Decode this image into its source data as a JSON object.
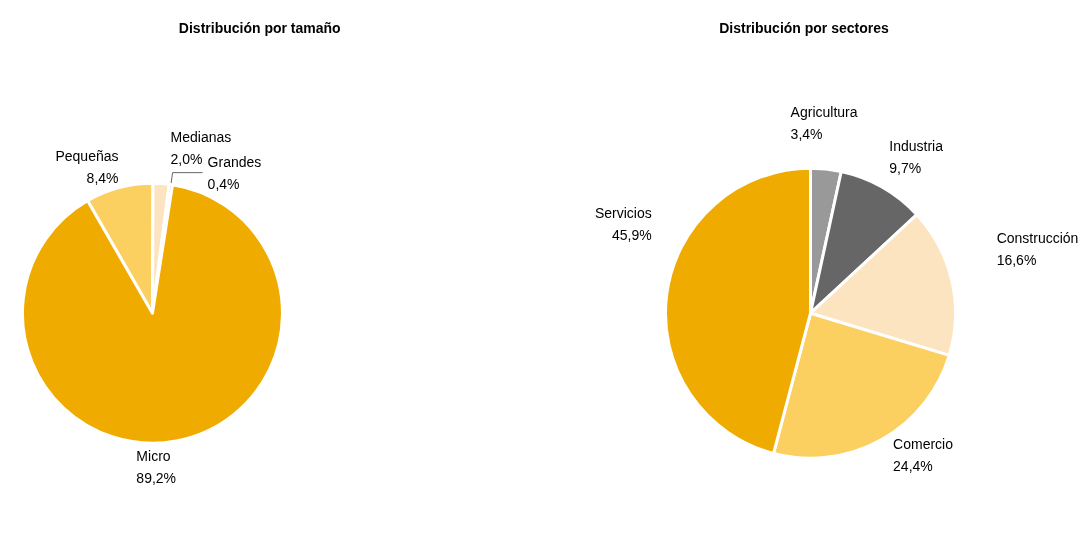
{
  "chart_data": [
    {
      "type": "pie",
      "title": "Distribución por tamaño",
      "categories": [
        "Pequeñas",
        "Medianas",
        "Grandes",
        "Micro"
      ],
      "values": [
        8.4,
        2.0,
        0.4,
        89.2
      ],
      "value_labels": [
        "8,4%",
        "2,0%",
        "0,4%",
        "89,2%"
      ],
      "colors": [
        "#fcd060",
        "#fde4c0",
        "#666666",
        "#f0ab00"
      ],
      "legend": false
    },
    {
      "type": "pie",
      "title": "Distribución por sectores",
      "categories": [
        "Agricultura",
        "Industria",
        "Construcción",
        "Comercio",
        "Servicios"
      ],
      "values": [
        3.4,
        9.7,
        16.6,
        24.4,
        45.9
      ],
      "value_labels": [
        "3,4%",
        "9,7%",
        "16,6%",
        "24,4%",
        "45,9%"
      ],
      "colors": [
        "#999999",
        "#666666",
        "#fde4c0",
        "#fcd060",
        "#f0ab00"
      ],
      "legend": false
    }
  ]
}
